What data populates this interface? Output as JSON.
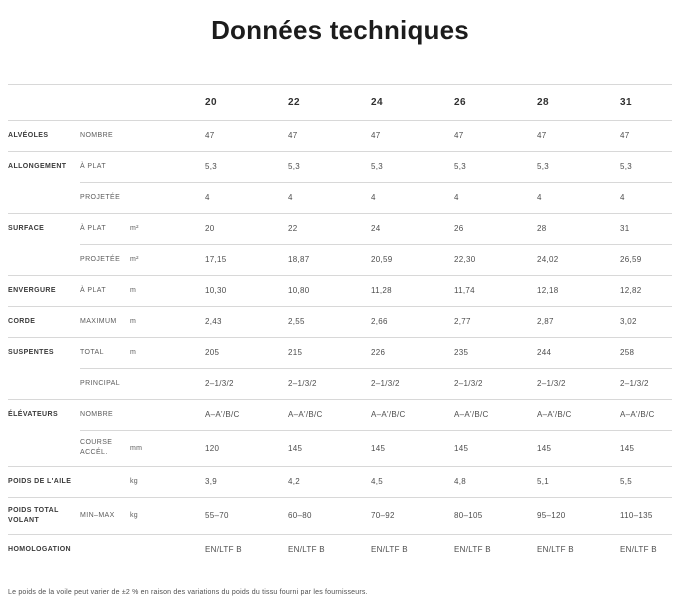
{
  "page": {
    "title": "Données techniques",
    "footnote": "Le poids de la voile peut varier de ±2 % en raison des variations du poids du tissu fourni par les fournisseurs."
  },
  "colors": {
    "title_text": "#1c1c1c",
    "body_text": "#4d4d4d",
    "rule": "#d8d8d8"
  },
  "table": {
    "sizes": [
      "20",
      "22",
      "24",
      "26",
      "28",
      "31"
    ],
    "rows": [
      {
        "category": "ALVÉOLES",
        "label": "NOMBRE",
        "unit": "",
        "values": [
          "47",
          "47",
          "47",
          "47",
          "47",
          "47"
        ],
        "group_start": true,
        "tall": false
      },
      {
        "category": "ALLONGEMENT",
        "label": "À PLAT",
        "unit": "",
        "values": [
          "5,3",
          "5,3",
          "5,3",
          "5,3",
          "5,3",
          "5,3"
        ],
        "group_start": true,
        "tall": false
      },
      {
        "category": "",
        "label": "PROJETÉE",
        "unit": "",
        "values": [
          "4",
          "4",
          "4",
          "4",
          "4",
          "4"
        ],
        "group_start": false,
        "tall": false
      },
      {
        "category": "SURFACE",
        "label": "À PLAT",
        "unit": "m²",
        "values": [
          "20",
          "22",
          "24",
          "26",
          "28",
          "31"
        ],
        "group_start": true,
        "tall": false
      },
      {
        "category": "",
        "label": "PROJETÉE",
        "unit": "m²",
        "values": [
          "17,15",
          "18,87",
          "20,59",
          "22,30",
          "24,02",
          "26,59"
        ],
        "group_start": false,
        "tall": false
      },
      {
        "category": "ENVERGURE",
        "label": "À PLAT",
        "unit": "m",
        "values": [
          "10,30",
          "10,80",
          "11,28",
          "11,74",
          "12,18",
          "12,82"
        ],
        "group_start": true,
        "tall": false
      },
      {
        "category": "CORDE",
        "label": "MAXIMUM",
        "unit": "m",
        "values": [
          "2,43",
          "2,55",
          "2,66",
          "2,77",
          "2,87",
          "3,02"
        ],
        "group_start": true,
        "tall": false
      },
      {
        "category": "SUSPENTES",
        "label": "TOTAL",
        "unit": "m",
        "values": [
          "205",
          "215",
          "226",
          "235",
          "244",
          "258"
        ],
        "group_start": true,
        "tall": false
      },
      {
        "category": "",
        "label": "PRINCIPAL",
        "unit": "",
        "values": [
          "2–1/3/2",
          "2–1/3/2",
          "2–1/3/2",
          "2–1/3/2",
          "2–1/3/2",
          "2–1/3/2"
        ],
        "group_start": false,
        "tall": false
      },
      {
        "category": "ÉLÉVATEURS",
        "label": "NOMBRE",
        "unit": "",
        "values": [
          "A–A'/B/C",
          "A–A'/B/C",
          "A–A'/B/C",
          "A–A'/B/C",
          "A–A'/B/C",
          "A–A'/B/C"
        ],
        "group_start": true,
        "tall": false
      },
      {
        "category": "",
        "label": "COURSE ACCÉL.",
        "unit": "mm",
        "values": [
          "120",
          "145",
          "145",
          "145",
          "145",
          "145"
        ],
        "group_start": false,
        "tall": true
      },
      {
        "category": "POIDS DE L'AILE",
        "label": "",
        "unit": "kg",
        "values": [
          "3,9",
          "4,2",
          "4,5",
          "4,8",
          "5,1",
          "5,5"
        ],
        "group_start": true,
        "tall": false
      },
      {
        "category": "POIDS TOTAL VOLANT",
        "label": "MIN–MAX",
        "unit": "kg",
        "values": [
          "55–70",
          "60–80",
          "70–92",
          "80–105",
          "95–120",
          "110–135"
        ],
        "group_start": true,
        "tall": true
      },
      {
        "category": "HOMOLOGATION",
        "label": "",
        "unit": "",
        "values": [
          "EN/LTF B",
          "EN/LTF B",
          "EN/LTF B",
          "EN/LTF B",
          "EN/LTF B",
          "EN/LTF B"
        ],
        "group_start": true,
        "tall": false
      }
    ]
  }
}
